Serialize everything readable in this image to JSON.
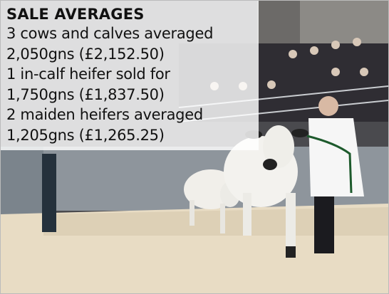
{
  "caption": {
    "heading": "SALE AVERAGES",
    "lines": [
      "3 cows and calves averaged",
      "2,050gns (£2,152.50)",
      "1 in-calf heifer sold for",
      "1,750gns (£1,837.50)",
      "2 maiden heifers averaged",
      "1,205gns (£1,265.25)"
    ]
  }
}
